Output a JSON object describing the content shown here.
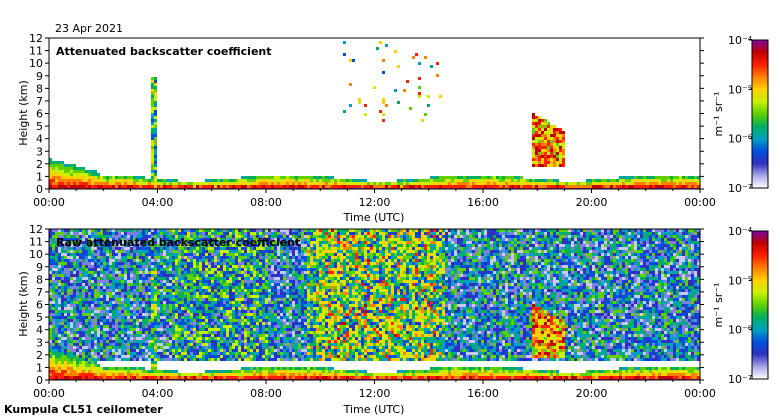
{
  "header": {
    "date": "23 Apr 2021"
  },
  "footer": {
    "site": "Kumpula CL51 ceilometer"
  },
  "colorbar": {
    "unit": "m⁻¹ sr⁻¹",
    "ticks": [
      "10⁻⁴",
      "10⁻⁵",
      "10⁻⁶",
      "10⁻⁷"
    ],
    "colors": [
      "#7a00a0",
      "#c00000",
      "#ff2000",
      "#ff8000",
      "#ffd000",
      "#c8f000",
      "#60d000",
      "#00b060",
      "#00a0c0",
      "#0050e0",
      "#3030c0",
      "#a8a8e8",
      "#ffffff"
    ]
  },
  "chart_data": [
    {
      "type": "heatmap",
      "title": "Attenuated backscatter coefficient",
      "xlabel": "Time (UTC)",
      "ylabel": "Height (km)",
      "xlim": [
        0,
        24
      ],
      "ylim": [
        0,
        12
      ],
      "xticks": [
        "00:00",
        "04:00",
        "08:00",
        "12:00",
        "16:00",
        "20:00",
        "00:00"
      ],
      "yticks": [
        "0",
        "1",
        "2",
        "3",
        "4",
        "5",
        "6",
        "7",
        "8",
        "9",
        "10",
        "11",
        "12"
      ],
      "colorbar_range": [
        "1e-7",
        "1e-4"
      ],
      "features": [
        {
          "name": "boundary layer aerosol",
          "t_start": 0,
          "t_end": 24,
          "top_km": 1.0
        },
        {
          "name": "early morning layer",
          "t_start": 0,
          "t_end": 1.8,
          "top_km": 2.6
        },
        {
          "name": "precipitation column",
          "t_start": 3.7,
          "t_end": 3.9,
          "top_km": 9.0
        },
        {
          "name": "scattered high cloud",
          "t_start": 10.8,
          "t_end": 14.4,
          "bottom_km": 5.0,
          "top_km": 11.8
        },
        {
          "name": "low cloud",
          "t_start": 17.8,
          "t_end": 19.0,
          "bottom_km": 1.8,
          "top_km": 6.0
        }
      ]
    },
    {
      "type": "heatmap",
      "title": "Raw attenuated backscatter coefficient",
      "xlabel": "Time (UTC)",
      "ylabel": "Height (km)",
      "xlim": [
        0,
        24
      ],
      "ylim": [
        0,
        12
      ],
      "xticks": [
        "00:00",
        "04:00",
        "08:00",
        "12:00",
        "16:00",
        "20:00",
        "00:00"
      ],
      "yticks": [
        "0",
        "1",
        "2",
        "3",
        "4",
        "5",
        "6",
        "7",
        "8",
        "9",
        "10",
        "11",
        "12"
      ],
      "colorbar_range": [
        "1e-7",
        "1e-4"
      ],
      "features": [
        {
          "name": "background noise",
          "t_start": 0,
          "t_end": 24,
          "bottom_km": 1.5,
          "top_km": 12.0
        },
        {
          "name": "boundary layer aerosol",
          "t_start": 0,
          "t_end": 24,
          "top_km": 1.0
        },
        {
          "name": "low cloud",
          "t_start": 17.8,
          "t_end": 19.0,
          "bottom_km": 1.8,
          "top_km": 6.0
        }
      ]
    }
  ]
}
